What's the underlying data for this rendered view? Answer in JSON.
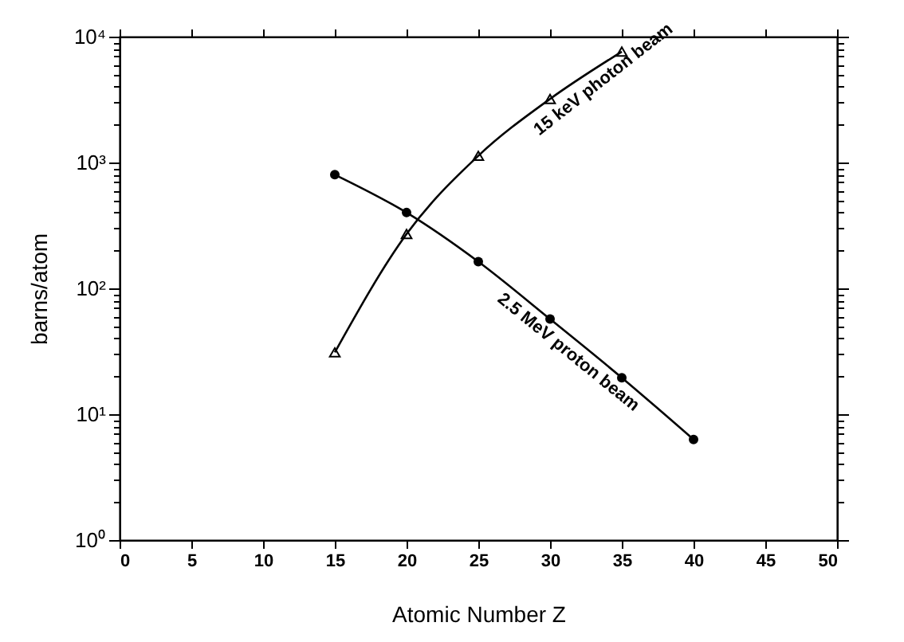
{
  "chart_data": {
    "type": "line",
    "xlabel": "Atomic Number Z",
    "ylabel": "barns/atom",
    "xlim": [
      0,
      50
    ],
    "xticks": [
      0,
      5,
      10,
      15,
      20,
      25,
      30,
      35,
      40,
      45,
      50
    ],
    "ylim": [
      1,
      10000
    ],
    "log": true,
    "yticks": [
      {
        "value": 1,
        "label": "10⁰"
      },
      {
        "value": 2,
        "label": null
      },
      {
        "value": 3,
        "label": null
      },
      {
        "value": 4,
        "label": null
      },
      {
        "value": 5,
        "label": null
      },
      {
        "value": 6,
        "label": null
      },
      {
        "value": 7,
        "label": null
      },
      {
        "value": 8,
        "label": null
      },
      {
        "value": 9,
        "label": null
      },
      {
        "value": 10,
        "label": "10¹"
      },
      {
        "value": 20,
        "label": null
      },
      {
        "value": 30,
        "label": null
      },
      {
        "value": 40,
        "label": null
      },
      {
        "value": 50,
        "label": null
      },
      {
        "value": 60,
        "label": null
      },
      {
        "value": 70,
        "label": null
      },
      {
        "value": 80,
        "label": null
      },
      {
        "value": 90,
        "label": null
      },
      {
        "value": 100,
        "label": "10²"
      },
      {
        "value": 200,
        "label": null
      },
      {
        "value": 300,
        "label": null
      },
      {
        "value": 400,
        "label": null
      },
      {
        "value": 500,
        "label": null
      },
      {
        "value": 600,
        "label": null
      },
      {
        "value": 700,
        "label": null
      },
      {
        "value": 800,
        "label": null
      },
      {
        "value": 900,
        "label": null
      },
      {
        "value": 1000,
        "label": "10³"
      },
      {
        "value": 2000,
        "label": null
      },
      {
        "value": 3000,
        "label": null
      },
      {
        "value": 4000,
        "label": null
      },
      {
        "value": 5000,
        "label": null
      },
      {
        "value": 6000,
        "label": null
      },
      {
        "value": 7000,
        "label": null
      },
      {
        "value": 8000,
        "label": null
      },
      {
        "value": 9000,
        "label": null
      },
      {
        "value": 10000,
        "label": "10⁴"
      }
    ],
    "grid": false,
    "line_style": "solid",
    "series": [
      {
        "color": "#000000",
        "marker": "triangle",
        "x": [
          15,
          20,
          25,
          30,
          35
        ],
        "values": [
          31,
          270,
          1130,
          3200,
          7600
        ]
      },
      {
        "color": "#000000",
        "marker": "circle",
        "x": [
          15,
          20,
          25,
          30,
          35,
          40
        ],
        "values": [
          800,
          400,
          163,
          57,
          19.5,
          6.3
        ]
      }
    ],
    "annotations": [
      "15 keV photon beam",
      "2.5 MeV proton beam"
    ]
  }
}
